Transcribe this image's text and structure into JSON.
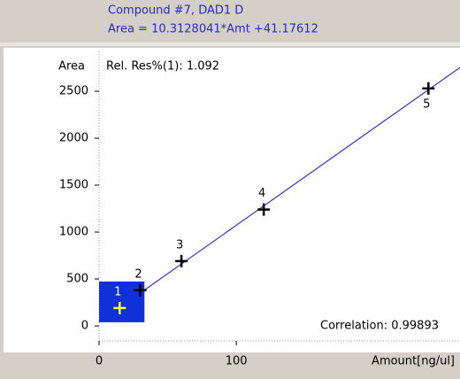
{
  "chart_data": {
    "type": "scatter",
    "title": "Compound #7, DAD1 D",
    "subtitle": "Area = 10.3128041*Amt +41.17612",
    "y_label": "Area",
    "x_label": "Amount[ng/ul]",
    "annotations": [
      "Rel. Res%(1): 1.092",
      "Correlation: 0.99893"
    ],
    "x": [
      15,
      30,
      60,
      120,
      240
    ],
    "series": [
      {
        "name": "Compound #7",
        "color": "#000000",
        "values": [
          190,
          380,
          690,
          1240,
          2530
        ]
      }
    ],
    "point_labels": [
      "1",
      "2",
      "3",
      "4",
      "5"
    ],
    "selected_point": 0,
    "fit_line": {
      "color": "#3333cc",
      "x": [
        0,
        263
      ],
      "values": [
        41.18,
        2753
      ]
    },
    "xlim": [
      0,
      263
    ],
    "ylim": [
      -160,
      2925
    ],
    "xticks": [
      0,
      100
    ],
    "yticks": [
      0,
      500,
      1000,
      1500,
      2000,
      2500
    ]
  }
}
